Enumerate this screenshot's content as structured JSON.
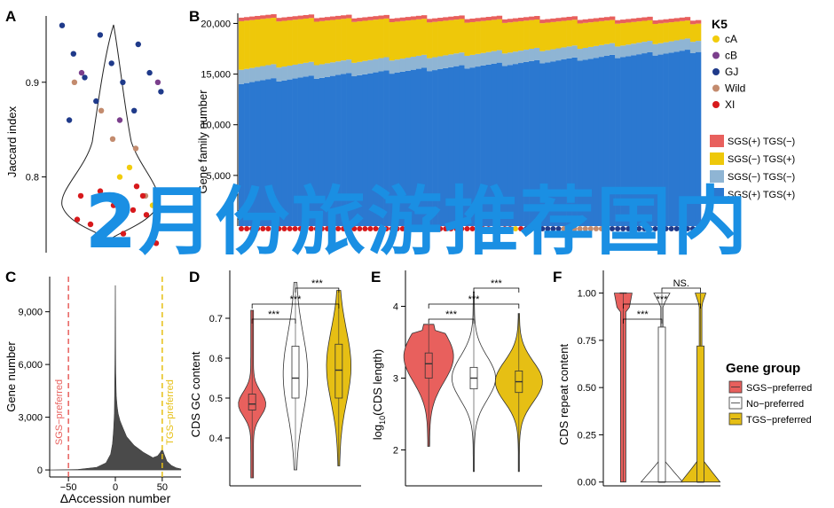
{
  "overlay_text": "2月份旅游推荐国内",
  "colors": {
    "cA": "#f2cc0c",
    "cB": "#7b3f8c",
    "GJ": "#1f3a8a",
    "Wild": "#c38b6e",
    "XI": "#d7191c",
    "sgs_pos_tgs_neg": "#e8605d",
    "sgs_neg_tgs_pos": "#eec80a",
    "sgs_neg_tgs_neg": "#8fb5d4",
    "sgs_pos_tgs_pos": "#2b78d0",
    "sgs_pref": "#e8605d",
    "no_pref": "#ffffff",
    "tgs_pref": "#e6bf14"
  },
  "chart_data": [
    {
      "panel": "A",
      "type": "scatter",
      "ylabel": "Jaccard index",
      "yticks": [
        "0.8",
        "0.9"
      ],
      "ylim": [
        0.72,
        0.97
      ],
      "series": [
        {
          "name": "GJ",
          "values": [
            0.96,
            0.95,
            0.94,
            0.93,
            0.92,
            0.91,
            0.905,
            0.9,
            0.89,
            0.88,
            0.87,
            0.86
          ]
        },
        {
          "name": "cB",
          "values": [
            0.91,
            0.86,
            0.9
          ]
        },
        {
          "name": "Wild",
          "values": [
            0.87,
            0.83,
            0.9,
            0.84,
            0.78
          ]
        },
        {
          "name": "cA",
          "values": [
            0.8,
            0.77,
            0.775,
            0.81
          ]
        },
        {
          "name": "XI",
          "values": [
            0.79,
            0.78,
            0.77,
            0.76,
            0.75,
            0.74,
            0.73,
            0.785,
            0.765,
            0.755,
            0.745,
            0.78
          ]
        }
      ]
    },
    {
      "panel": "B",
      "type": "bar",
      "ylabel": "Gene family number",
      "yticks": [
        "5,000",
        "10,000",
        "15,000",
        "20,000"
      ],
      "ylim": [
        0,
        21000
      ],
      "legend_title": "K5",
      "legend_k5": [
        "cA",
        "cB",
        "GJ",
        "Wild",
        "XI"
      ],
      "legend_sgs": [
        "SGS(+) TGS(−)",
        "SGS(−) TGS(+)",
        "SGS(−) TGS(−)",
        "SGS(+) TGS(+)"
      ],
      "n_bars": 86,
      "series": [
        {
          "name": "SGS(+) TGS(+)",
          "start": 14200,
          "end": 17300
        },
        {
          "name": "SGS(−) TGS(−)",
          "start": 1400,
          "end": 1100
        },
        {
          "name": "SGS(−) TGS(+)",
          "start": 4800,
          "end": 1700
        },
        {
          "name": "SGS(+) TGS(−)",
          "start": 350,
          "end": 350
        }
      ]
    },
    {
      "panel": "C",
      "type": "area",
      "xlabel": "ΔAccession number",
      "ylabel": "Gene number",
      "xticks": [
        "−50",
        "0",
        "50"
      ],
      "yticks": [
        "0",
        "3,000",
        "6,000",
        "9,000"
      ],
      "xlim": [
        -70,
        70
      ],
      "ylim": [
        -400,
        11000
      ],
      "annotations": [
        "SGS−preferred",
        "TGS−preferred"
      ],
      "x": [
        -70,
        -40,
        -20,
        -10,
        -5,
        -3,
        -2,
        -1,
        -0.5,
        0,
        0.5,
        1,
        2,
        3,
        5,
        8,
        12,
        20,
        30,
        40,
        45,
        48,
        50,
        52,
        55,
        60,
        65,
        70
      ],
      "values": [
        0,
        30,
        150,
        400,
        900,
        1500,
        2200,
        3200,
        6000,
        10500,
        5500,
        4200,
        3600,
        3200,
        2800,
        2400,
        1900,
        1400,
        1000,
        700,
        800,
        1000,
        1200,
        900,
        500,
        250,
        120,
        60
      ]
    },
    {
      "panel": "D",
      "type": "violin",
      "ylabel": "CDS GC content",
      "yticks": [
        "0.4",
        "0.5",
        "0.6",
        "0.7"
      ],
      "ylim": [
        0.28,
        0.82
      ],
      "categories": [
        "SGS−preferred",
        "No−preferred",
        "TGS−preferred"
      ],
      "medians": [
        0.485,
        0.55,
        0.57
      ],
      "q1": [
        0.47,
        0.5,
        0.5
      ],
      "q3": [
        0.51,
        0.63,
        0.635
      ],
      "min": [
        0.3,
        0.32,
        0.33
      ],
      "max": [
        0.72,
        0.79,
        0.77
      ],
      "significance": [
        "***",
        "***",
        "***"
      ]
    },
    {
      "panel": "E",
      "type": "violin",
      "ylabel": "log10(CDS length)",
      "yticks": [
        "2",
        "3",
        "4"
      ],
      "ylim": [
        1.5,
        4.5
      ],
      "categories": [
        "SGS−preferred",
        "No−preferred",
        "TGS−preferred"
      ],
      "medians": [
        3.2,
        3.0,
        2.95
      ],
      "q1": [
        3.0,
        2.85,
        2.8
      ],
      "q3": [
        3.35,
        3.15,
        3.1
      ],
      "min": [
        2.05,
        1.7,
        1.7
      ],
      "max": [
        3.75,
        4.2,
        3.9
      ],
      "significance": [
        "***",
        "***",
        "***"
      ]
    },
    {
      "panel": "F",
      "type": "violin",
      "ylabel": "CDS repeat content",
      "yticks": [
        "0.00",
        "0.25",
        "0.50",
        "0.75",
        "1.00"
      ],
      "ylim": [
        -0.02,
        1.12
      ],
      "categories": [
        "SGS−preferred",
        "No−preferred",
        "TGS−preferred"
      ],
      "medians": [
        1.0,
        0.0,
        0.0
      ],
      "q1": [
        1.0,
        0.0,
        0.0
      ],
      "q3": [
        1.0,
        0.82,
        0.72
      ],
      "min": [
        0.0,
        0.0,
        0.0
      ],
      "max": [
        1.0,
        1.0,
        1.0
      ],
      "significance": [
        "***",
        "***",
        "NS."
      ],
      "legend_title": "Gene group",
      "legend": [
        "SGS−preferred",
        "No−preferred",
        "TGS−preferred"
      ]
    }
  ],
  "panel_labels": [
    "A",
    "B",
    "C",
    "D",
    "E",
    "F"
  ]
}
